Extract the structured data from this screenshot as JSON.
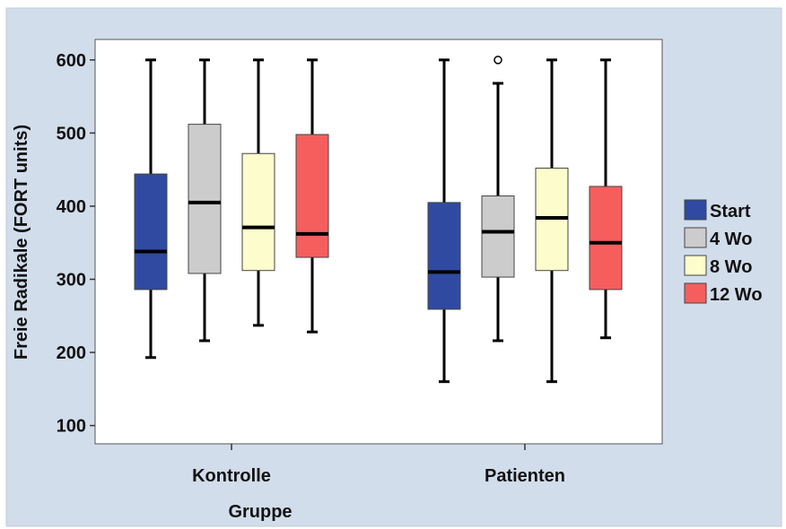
{
  "chart_data": {
    "type": "boxplot",
    "xlabel": "Gruppe",
    "ylabel": "Freie Radikale (FORT units)",
    "ylim": [
      75,
      628
    ],
    "yticks": [
      100,
      200,
      300,
      400,
      500,
      600
    ],
    "grid": false,
    "legend_position": "right",
    "categories": [
      "Kontrolle",
      "Patienten"
    ],
    "series": [
      {
        "name": "Start",
        "color": "#2f4aa0",
        "boxes": [
          {
            "min": 193,
            "q1": 286,
            "median": 338,
            "q3": 444,
            "max": 600
          },
          {
            "min": 160,
            "q1": 259,
            "median": 310,
            "q3": 405,
            "max": 600
          }
        ]
      },
      {
        "name": "4 Wo",
        "color": "#cccccc",
        "boxes": [
          {
            "min": 216,
            "q1": 308,
            "median": 405,
            "q3": 512,
            "max": 600
          },
          {
            "min": 216,
            "q1": 303,
            "median": 365,
            "q3": 414,
            "max": 568,
            "outliers": [
              600
            ]
          }
        ]
      },
      {
        "name": "8 Wo",
        "color": "#fcfccc",
        "boxes": [
          {
            "min": 237,
            "q1": 312,
            "median": 371,
            "q3": 472,
            "max": 600
          },
          {
            "min": 160,
            "q1": 312,
            "median": 384,
            "q3": 452,
            "max": 600
          }
        ]
      },
      {
        "name": "12 Wo",
        "color": "#f65e5e",
        "boxes": [
          {
            "min": 228,
            "q1": 330,
            "median": 362,
            "q3": 498,
            "max": 600
          },
          {
            "min": 220,
            "q1": 286,
            "median": 350,
            "q3": 427,
            "max": 600
          }
        ]
      }
    ]
  }
}
